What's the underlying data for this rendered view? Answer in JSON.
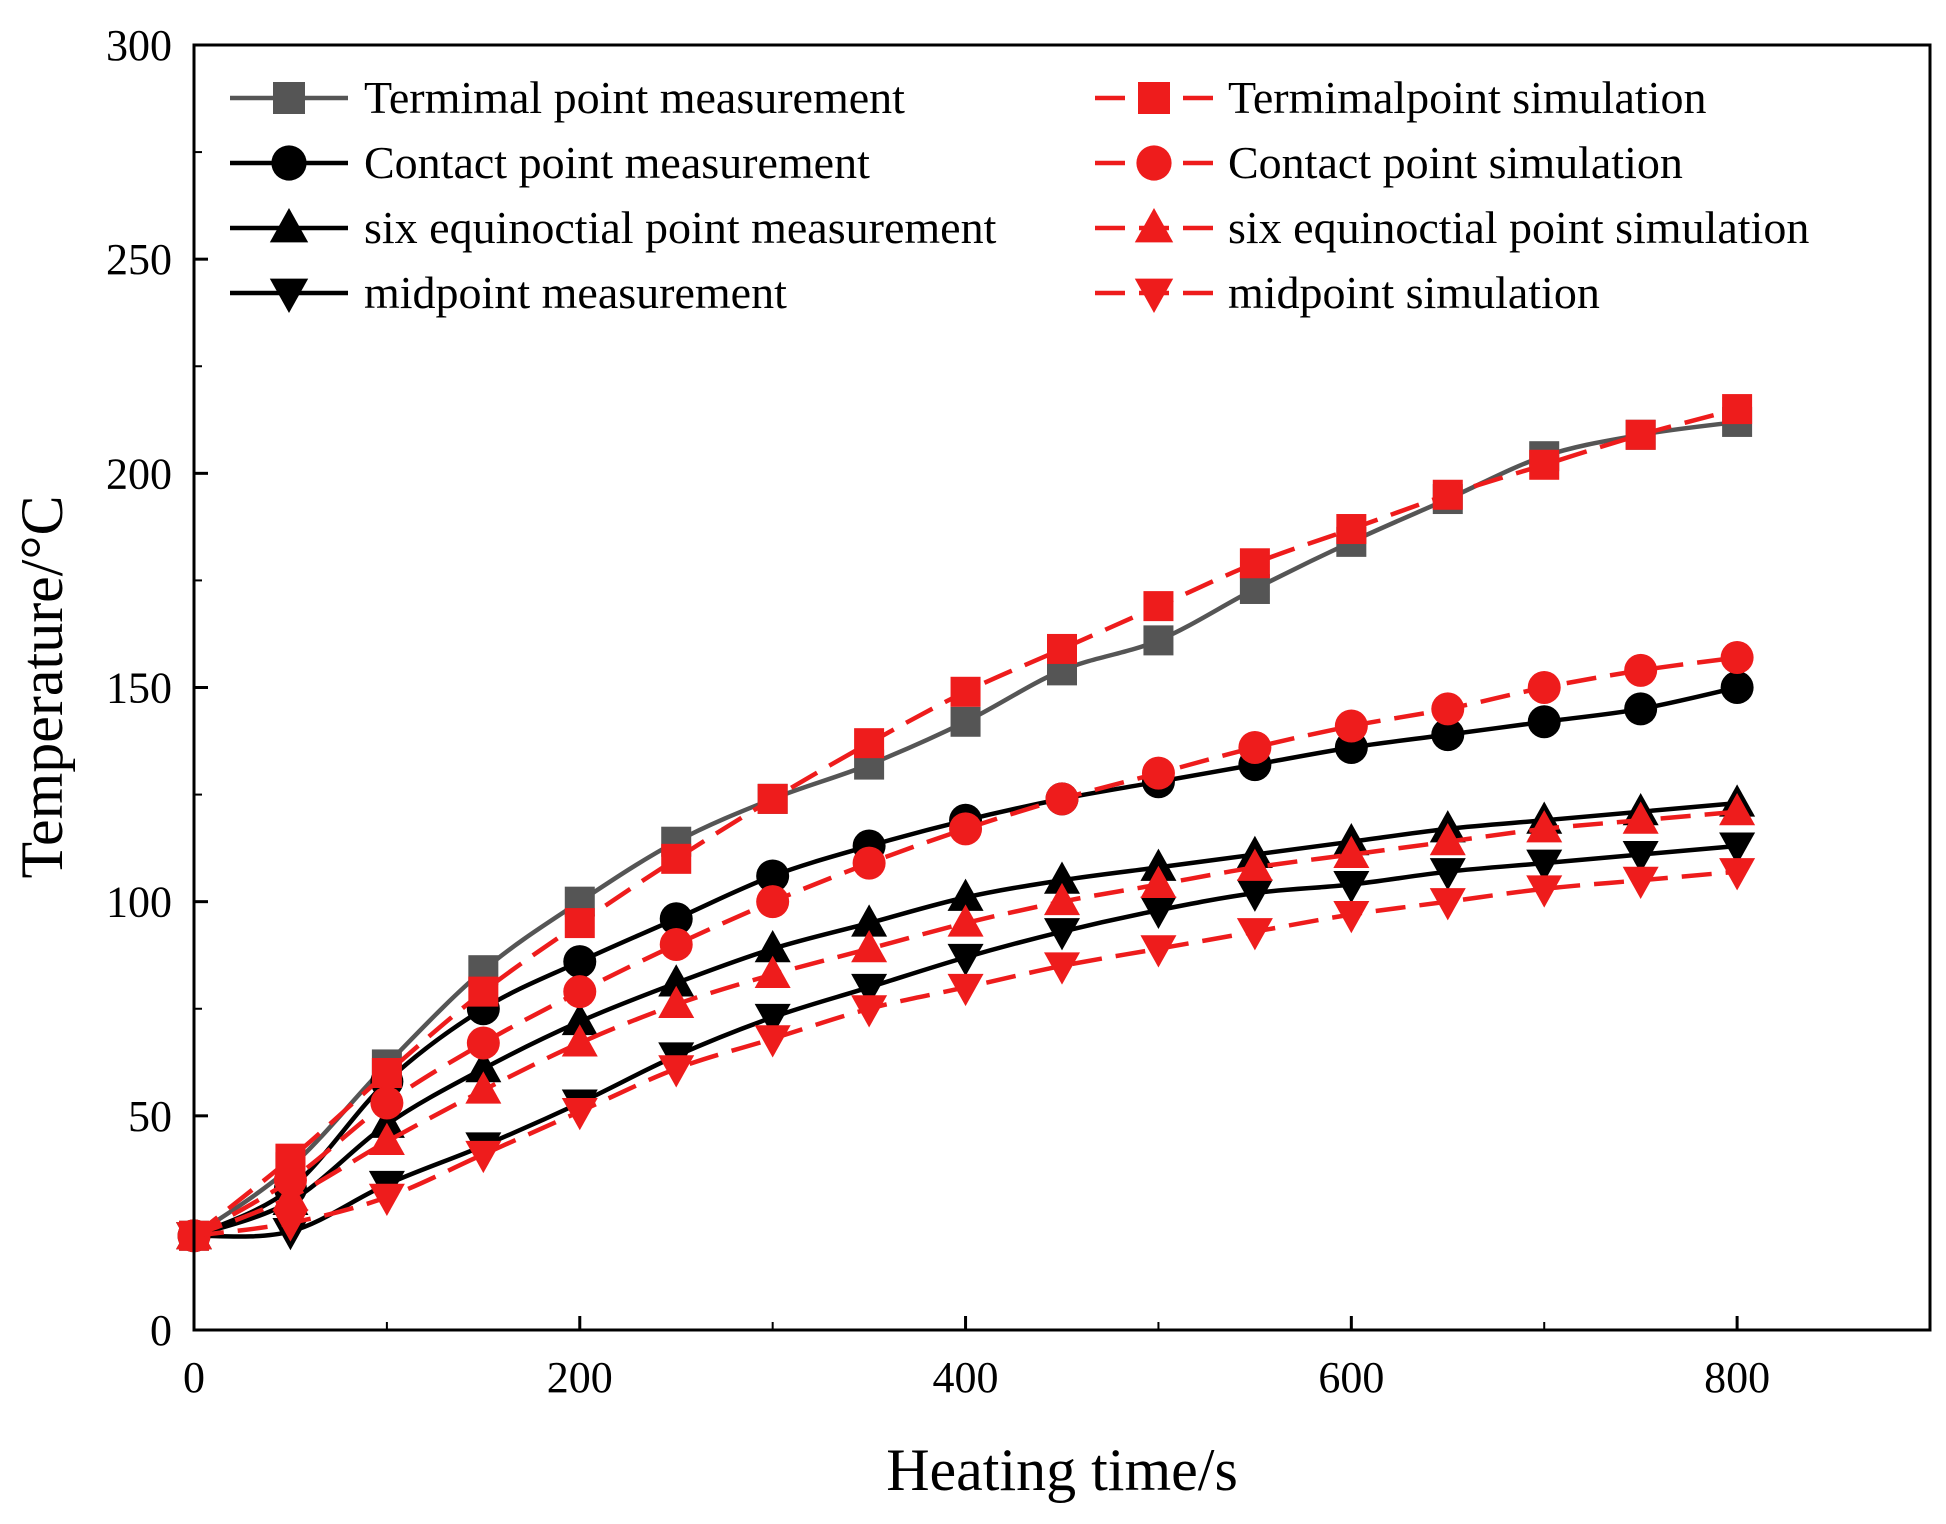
{
  "chart_data": {
    "type": "line",
    "title": "",
    "xlabel": "Heating time/s",
    "ylabel": "Temperature/°C",
    "xlim": [
      0,
      900
    ],
    "ylim": [
      0,
      300
    ],
    "xticks": [
      0,
      200,
      400,
      600,
      800
    ],
    "yticks": [
      0,
      50,
      100,
      150,
      200,
      250,
      300
    ],
    "x": [
      0,
      50,
      100,
      150,
      200,
      250,
      300,
      350,
      400,
      450,
      500,
      550,
      600,
      650,
      700,
      750,
      800
    ],
    "legend_position": "top",
    "series": [
      {
        "name": "Termimal point measurement",
        "color": "#555555",
        "marker": "square",
        "dash": "solid",
        "values": [
          22,
          38,
          62,
          84,
          100,
          114,
          124,
          132,
          142,
          154,
          161,
          173,
          184,
          194,
          204,
          209,
          212
        ]
      },
      {
        "name": "Contact point measurement",
        "color": "#000000",
        "marker": "circle",
        "dash": "solid",
        "values": [
          22,
          33,
          58,
          75,
          86,
          96,
          106,
          113,
          119,
          124,
          128,
          132,
          136,
          139,
          142,
          145,
          150
        ]
      },
      {
        "name": "six equinoctial point measurement",
        "color": "#000000",
        "marker": "triangle-up",
        "dash": "solid",
        "values": [
          22,
          30,
          48,
          61,
          72,
          81,
          89,
          95,
          101,
          105,
          108,
          111,
          114,
          117,
          119,
          121,
          123
        ]
      },
      {
        "name": "midpoint measurement",
        "color": "#000000",
        "marker": "triangle-down",
        "dash": "solid",
        "values": [
          22,
          23,
          34,
          43,
          53,
          64,
          73,
          80,
          87,
          93,
          98,
          102,
          104,
          107,
          109,
          111,
          113
        ]
      },
      {
        "name": "Termimalpoint simulation",
        "color": "#ee1c1c",
        "marker": "square",
        "dash": "dashed",
        "values": [
          22,
          40,
          60,
          79,
          95,
          110,
          124,
          137,
          149,
          159,
          169,
          179,
          187,
          195,
          202,
          209,
          215
        ]
      },
      {
        "name": "Contact point  simulation",
        "color": "#ee1c1c",
        "marker": "circle",
        "dash": "dashed",
        "values": [
          22,
          35,
          53,
          67,
          79,
          90,
          100,
          109,
          117,
          124,
          130,
          136,
          141,
          145,
          150,
          154,
          157
        ]
      },
      {
        "name": "six equinoctial point simulation",
        "color": "#ee1c1c",
        "marker": "triangle-up",
        "dash": "dashed",
        "values": [
          22,
          31,
          44,
          56,
          67,
          76,
          83,
          89,
          95,
          100,
          104,
          108,
          111,
          114,
          117,
          119,
          121
        ]
      },
      {
        "name": "midpoint simulation",
        "color": "#ee1c1c",
        "marker": "triangle-down",
        "dash": "dashed",
        "values": [
          22,
          25,
          31,
          41,
          51,
          61,
          68,
          75,
          80,
          85,
          89,
          93,
          97,
          100,
          103,
          105,
          107
        ]
      }
    ]
  }
}
